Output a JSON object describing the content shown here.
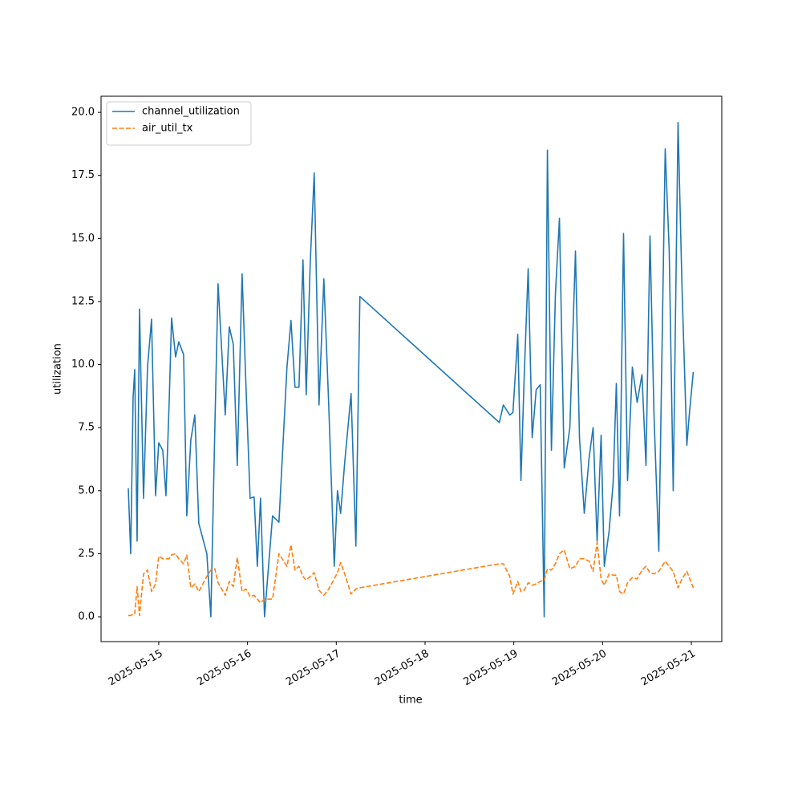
{
  "chart_data": {
    "type": "line",
    "xlabel": "time",
    "ylabel": "utilization",
    "x": [
      "2025-05-14T15:46",
      "2025-05-14T16:25",
      "2025-05-14T17:04",
      "2025-05-14T17:30",
      "2025-05-14T18:09",
      "2025-05-14T18:48",
      "2025-05-14T19:53",
      "2025-05-14T20:58",
      "2025-05-14T22:03",
      "2025-05-14T23:08",
      "2025-05-15T00:00",
      "2025-05-15T01:05",
      "2025-05-15T01:57",
      "2025-05-15T02:49",
      "2025-05-15T03:28",
      "2025-05-15T04:33",
      "2025-05-15T05:25",
      "2025-05-15T06:43",
      "2025-05-15T07:35",
      "2025-05-15T08:40",
      "2025-05-15T09:45",
      "2025-05-15T10:50",
      "2025-05-15T13:00",
      "2025-05-15T14:05",
      "2025-05-15T15:10",
      "2025-05-15T16:02",
      "2025-05-15T17:59",
      "2025-05-15T19:04",
      "2025-05-15T20:09",
      "2025-05-15T21:14",
      "2025-05-15T22:32",
      "2025-05-15T23:37",
      "2025-05-16T00:42",
      "2025-05-16T01:47",
      "2025-05-16T02:39",
      "2025-05-16T03:31",
      "2025-05-16T04:36",
      "2025-05-16T06:46",
      "2025-05-16T08:30",
      "2025-05-16T10:40",
      "2025-05-16T11:45",
      "2025-05-16T12:50",
      "2025-05-16T13:55",
      "2025-05-16T15:00",
      "2025-05-16T15:52",
      "2025-05-16T16:57",
      "2025-05-16T18:02",
      "2025-05-16T19:20",
      "2025-05-16T20:38",
      "2025-05-16T21:56",
      "2025-05-16T23:27",
      "2025-05-17T00:19",
      "2025-05-17T01:11",
      "2025-05-17T02:16",
      "2025-05-17T04:00",
      "2025-05-17T05:18",
      "2025-05-17T06:23",
      "2025-05-18T20:05",
      "2025-05-18T21:10",
      "2025-05-18T22:02",
      "2025-05-18T22:54",
      "2025-05-18T23:46",
      "2025-05-19T01:04",
      "2025-05-19T01:56",
      "2025-05-19T02:48",
      "2025-05-19T03:53",
      "2025-05-19T04:58",
      "2025-05-19T06:03",
      "2025-05-19T07:08",
      "2025-05-19T08:13",
      "2025-05-19T09:05",
      "2025-05-19T10:10",
      "2025-05-19T11:15",
      "2025-05-19T12:20",
      "2025-05-19T13:38",
      "2025-05-19T15:09",
      "2025-05-19T16:40",
      "2025-05-19T17:45",
      "2025-05-19T19:03",
      "2025-05-19T20:21",
      "2025-05-19T21:26",
      "2025-05-19T22:31",
      "2025-05-19T23:36",
      "2025-05-20T00:28",
      "2025-05-20T01:46",
      "2025-05-20T02:51",
      "2025-05-20T03:43",
      "2025-05-20T04:35",
      "2025-05-20T05:40",
      "2025-05-20T06:45",
      "2025-05-20T08:03",
      "2025-05-20T09:21",
      "2025-05-20T10:39",
      "2025-05-20T11:44",
      "2025-05-20T12:49",
      "2025-05-20T13:54",
      "2025-05-20T15:12",
      "2025-05-20T16:56",
      "2025-05-20T18:01",
      "2025-05-20T19:06",
      "2025-05-20T20:24",
      "2025-05-20T21:29",
      "2025-05-20T22:47",
      "2025-05-20T23:26",
      "2025-05-21T00:31"
    ],
    "series": [
      {
        "name": "channel_utilization",
        "color": "#1f77b4",
        "linestyle": "solid",
        "values": [
          5.1,
          2.5,
          8.7,
          9.8,
          3.0,
          12.2,
          4.7,
          9.9,
          11.8,
          4.8,
          6.9,
          6.6,
          4.8,
          8.5,
          11.85,
          10.3,
          10.9,
          10.4,
          4.0,
          7.0,
          8.0,
          3.7,
          2.5,
          0.0,
          7.5,
          13.2,
          8.0,
          11.5,
          10.8,
          6.0,
          13.6,
          9.0,
          4.7,
          4.75,
          2.0,
          4.7,
          0.0,
          4.0,
          3.75,
          9.9,
          11.75,
          9.1,
          9.1,
          14.15,
          8.8,
          14.0,
          17.6,
          8.4,
          13.4,
          8.5,
          2.0,
          5.0,
          4.1,
          6.1,
          8.85,
          2.8,
          12.7,
          7.7,
          8.4,
          8.2,
          8.0,
          8.1,
          11.2,
          5.4,
          9.5,
          13.8,
          7.1,
          9.0,
          9.2,
          0.0,
          18.5,
          6.6,
          12.8,
          15.8,
          5.9,
          7.5,
          14.5,
          7.1,
          4.1,
          6.3,
          7.5,
          3.0,
          7.2,
          2.0,
          3.4,
          5.3,
          9.25,
          4.0,
          15.2,
          5.4,
          9.9,
          8.5,
          9.6,
          6.0,
          15.1,
          8.0,
          2.6,
          18.55,
          14.5,
          5.0,
          19.6,
          13.0,
          6.8,
          8.0,
          9.7
        ]
      },
      {
        "name": "air_util_tx",
        "color": "#ff7f0e",
        "linestyle": "dashed",
        "values": [
          0.05,
          0.05,
          0.1,
          0.1,
          1.2,
          0.05,
          1.7,
          1.85,
          1.0,
          1.3,
          2.4,
          2.3,
          2.3,
          2.3,
          2.45,
          2.5,
          2.3,
          2.1,
          2.45,
          1.15,
          1.3,
          1.0,
          1.6,
          1.85,
          1.9,
          1.35,
          0.85,
          1.4,
          1.2,
          2.35,
          1.0,
          1.1,
          0.8,
          0.85,
          0.7,
          0.55,
          0.7,
          0.7,
          2.5,
          2.0,
          2.85,
          1.85,
          2.0,
          1.6,
          1.45,
          1.6,
          1.75,
          1.05,
          0.85,
          1.1,
          1.5,
          1.75,
          2.15,
          1.7,
          0.9,
          1.1,
          1.15,
          2.1,
          2.1,
          1.85,
          1.6,
          0.9,
          1.4,
          1.0,
          1.05,
          1.35,
          1.25,
          1.3,
          1.4,
          1.45,
          1.9,
          1.85,
          2.1,
          2.5,
          2.65,
          1.9,
          2.0,
          2.3,
          2.3,
          2.2,
          1.8,
          2.95,
          1.5,
          1.25,
          1.7,
          1.65,
          1.65,
          1.0,
          0.9,
          1.35,
          1.55,
          1.5,
          1.85,
          2.0,
          1.75,
          1.7,
          1.8,
          2.2,
          2.0,
          1.8,
          1.15,
          1.5,
          1.8,
          1.55,
          1.15
        ]
      }
    ],
    "xlim": [
      "2025-05-14T08:24",
      "2025-05-21T08:14"
    ],
    "xticks": [
      "2025-05-15",
      "2025-05-16",
      "2025-05-17",
      "2025-05-18",
      "2025-05-19",
      "2025-05-20",
      "2025-05-21"
    ],
    "ylim": [
      -0.985,
      20.64
    ],
    "yticks": [
      {
        "value": 0,
        "label": "0.0"
      },
      2.5,
      {
        "value": 5,
        "label": "5.0"
      },
      7.5,
      {
        "value": 10,
        "label": "10.0"
      },
      12.5,
      {
        "value": 15,
        "label": "15.0"
      },
      17.5,
      {
        "value": 20,
        "label": "20.0"
      }
    ],
    "grid": false,
    "legend": "upper left"
  }
}
